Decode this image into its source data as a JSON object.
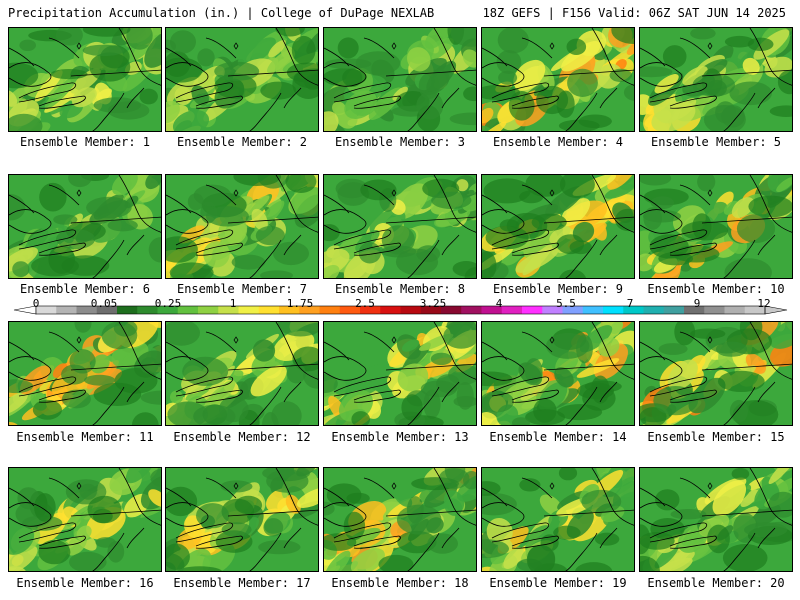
{
  "header": {
    "left": "Precipitation Accumulation (in.) | College of DuPage NEXLAB",
    "right": "18Z GEFS | F156 Valid: 06Z SAT JUN 14 2025"
  },
  "panel_label_prefix": "Ensemble Member: ",
  "members": [
    {
      "id": "1",
      "intensity": 0.35,
      "seed": 11
    },
    {
      "id": "2",
      "intensity": 0.25,
      "seed": 23
    },
    {
      "id": "3",
      "intensity": 0.2,
      "seed": 37
    },
    {
      "id": "4",
      "intensity": 0.7,
      "seed": 41
    },
    {
      "id": "5",
      "intensity": 0.45,
      "seed": 53
    },
    {
      "id": "6",
      "intensity": 0.2,
      "seed": 67
    },
    {
      "id": "7",
      "intensity": 0.55,
      "seed": 71
    },
    {
      "id": "8",
      "intensity": 0.3,
      "seed": 83
    },
    {
      "id": "9",
      "intensity": 0.6,
      "seed": 97
    },
    {
      "id": "10",
      "intensity": 0.6,
      "seed": 101
    },
    {
      "id": "11",
      "intensity": 0.75,
      "seed": 113
    },
    {
      "id": "12",
      "intensity": 0.35,
      "seed": 127
    },
    {
      "id": "13",
      "intensity": 0.55,
      "seed": 131
    },
    {
      "id": "14",
      "intensity": 0.7,
      "seed": 149
    },
    {
      "id": "15",
      "intensity": 0.75,
      "seed": 151
    },
    {
      "id": "16",
      "intensity": 0.5,
      "seed": 163
    },
    {
      "id": "17",
      "intensity": 0.55,
      "seed": 173
    },
    {
      "id": "18",
      "intensity": 0.65,
      "seed": 181
    },
    {
      "id": "19",
      "intensity": 0.45,
      "seed": 191
    },
    {
      "id": "20",
      "intensity": 0.35,
      "seed": 199
    }
  ],
  "colorbar": {
    "labels": [
      "0",
      "0.05",
      "0.25",
      "1",
      "1.75",
      "2.5",
      "3.25",
      "4",
      "5.5",
      "7",
      "9",
      "12"
    ],
    "colors": [
      "#d9d9d9",
      "#b4b4b4",
      "#8c8c8c",
      "#6e6e6e",
      "#1e6e1e",
      "#2e8b2e",
      "#3ca83c",
      "#63c13f",
      "#8fd143",
      "#c6e04a",
      "#f0f046",
      "#ffe030",
      "#ffc020",
      "#ffa020",
      "#ff8010",
      "#ff5a10",
      "#f03010",
      "#d81010",
      "#b80810",
      "#980818",
      "#880830",
      "#a01060",
      "#c01090",
      "#e020c0",
      "#ff30ff",
      "#c080ff",
      "#80a0ff",
      "#40c0ff",
      "#00e0ff",
      "#00c8c8",
      "#20b0b0",
      "#40a0a0",
      "#707070",
      "#909090",
      "#b0b0b0",
      "#c8c8c8"
    ]
  }
}
